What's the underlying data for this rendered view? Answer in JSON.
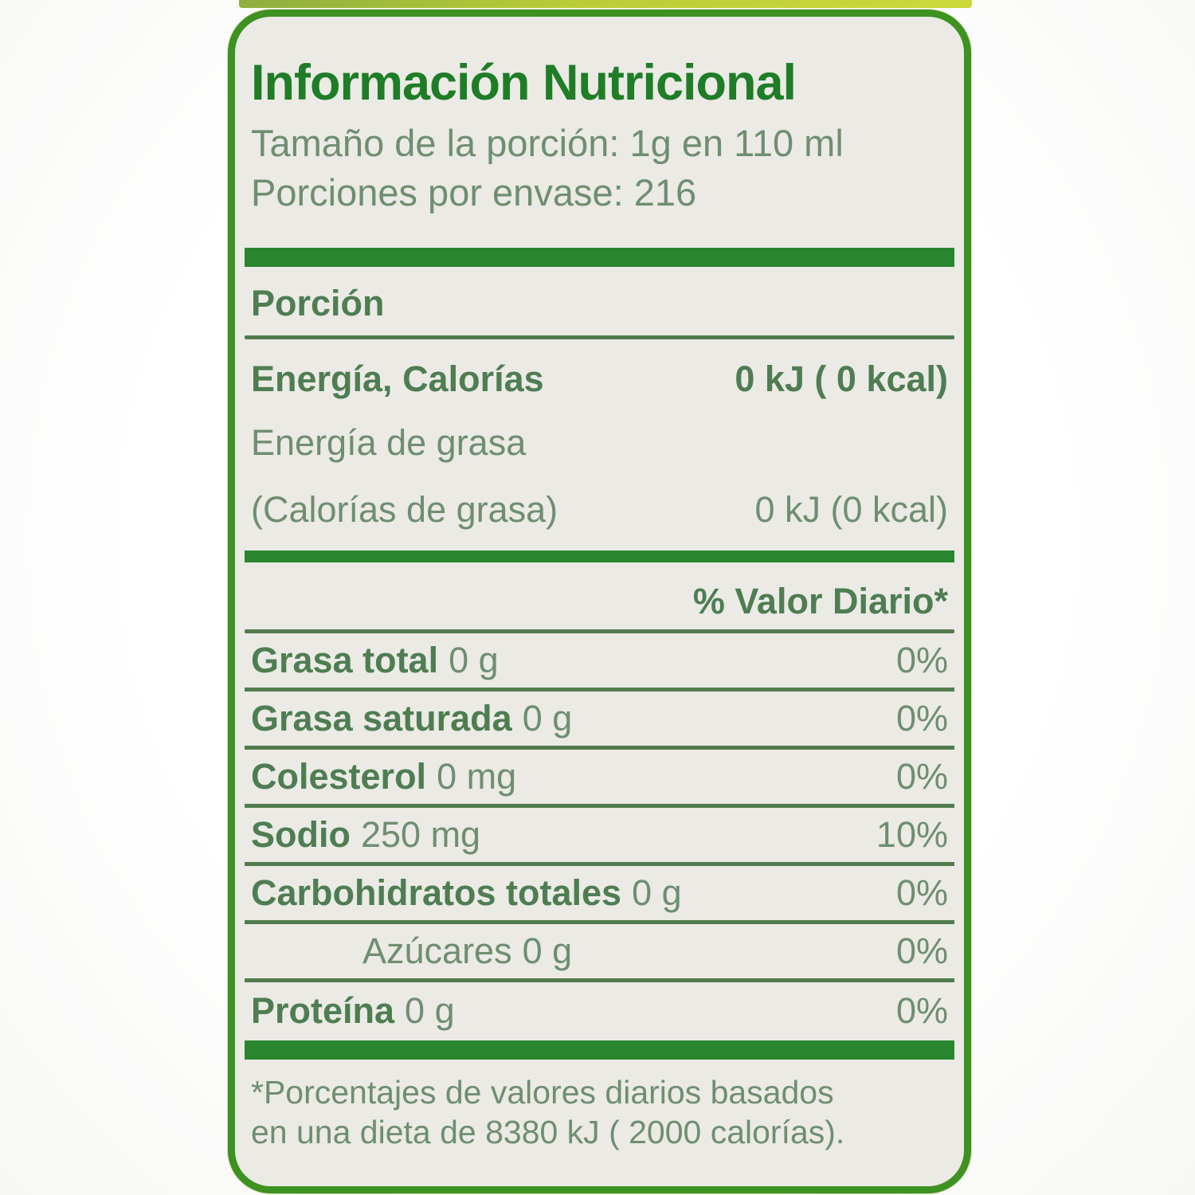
{
  "label": {
    "title": "Información Nutricional",
    "serving_size": "Tamaño de la porción: 1g en 110 ml",
    "servings_per_container": "Porciones por envase: 216",
    "portion_header": "Porción",
    "energy_rows": [
      {
        "label": "Energía, Calorías",
        "value": "0 kJ ( 0 kcal)"
      },
      {
        "label": "Energía de grasa"
      },
      {
        "label": "(Calorías de grasa)",
        "value": "0 kJ (0 kcal)"
      }
    ],
    "daily_value_header": "% Valor Diario*",
    "nutrient_rows": [
      {
        "name": "Grasa total",
        "amount": "0 g",
        "dv": "0%"
      },
      {
        "name": "Grasa saturada",
        "amount": "0 g",
        "dv": "0%"
      },
      {
        "name": "Colesterol",
        "amount": "0 mg",
        "dv": "0%"
      },
      {
        "name": "Sodio",
        "amount": "250 mg",
        "dv": "10%"
      },
      {
        "name": "Carbohidratos totales",
        "amount": "0 g",
        "dv": "0%"
      },
      {
        "name": "Azúcares",
        "amount": "0 g",
        "dv": "0%"
      },
      {
        "name": "Proteína",
        "amount": "0 g",
        "dv": "0%"
      }
    ],
    "footnote_lines": [
      "*Porcentajes de valores diarios basados",
      "en una dieta de 8380 kJ ( 2000 calorías)."
    ]
  },
  "colors": {
    "border-green": "#3e9221",
    "bar-green": "#28872e",
    "line-green": "#527b4e",
    "title-green": "#1e7d26",
    "text-strong-green": "#4e7d52",
    "text-green": "#6f8e71",
    "label-bg": "#ebeae5",
    "page-bg": "#f7f7f5",
    "package-strip-green": "#b9cc37"
  }
}
